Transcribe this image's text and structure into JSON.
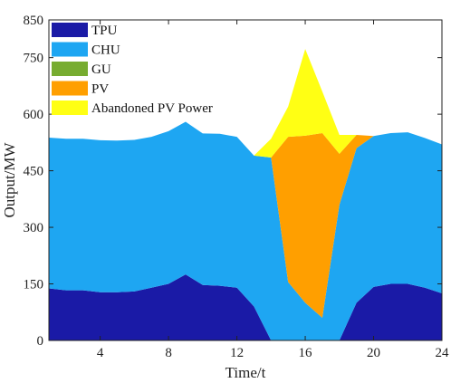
{
  "chart_data": {
    "type": "area",
    "stacked": true,
    "xlabel": "Time/t",
    "ylabel": "Output/MW",
    "xlim": [
      1,
      24
    ],
    "ylim": [
      0,
      850
    ],
    "xticks": [
      4,
      8,
      12,
      16,
      20,
      24
    ],
    "yticks": [
      0,
      150,
      300,
      450,
      600,
      750,
      850
    ],
    "legend_position": "top-left",
    "x": [
      1,
      2,
      3,
      4,
      5,
      6,
      7,
      8,
      9,
      10,
      11,
      12,
      13,
      14,
      15,
      16,
      17,
      18,
      19,
      20,
      21,
      22,
      23,
      24
    ],
    "series": [
      {
        "name": "TPU",
        "color": "#1a1aa6",
        "values": [
          138,
          133,
          133,
          128,
          128,
          130,
          140,
          150,
          175,
          147,
          145,
          140,
          90,
          0,
          0,
          0,
          0,
          0,
          100,
          142,
          150,
          150,
          140,
          125
        ]
      },
      {
        "name": "CHU",
        "color": "#1ea6f2",
        "values": [
          400,
          402,
          402,
          403,
          402,
          402,
          400,
          405,
          405,
          402,
          403,
          400,
          400,
          485,
          155,
          100,
          60,
          360,
          410,
          400,
          400,
          402,
          397,
          395
        ]
      },
      {
        "name": "GU",
        "color": "#77ac30",
        "values": [
          0,
          0,
          0,
          0,
          0,
          0,
          0,
          0,
          0,
          0,
          0,
          0,
          0,
          0,
          0,
          0,
          0,
          0,
          0,
          0,
          0,
          0,
          0,
          0
        ]
      },
      {
        "name": "PV",
        "color": "#ff9f00",
        "values": [
          0,
          0,
          0,
          0,
          0,
          0,
          0,
          0,
          0,
          0,
          0,
          0,
          0,
          0,
          385,
          443,
          490,
          135,
          35,
          0,
          0,
          0,
          0,
          0
        ]
      },
      {
        "name": "Abandoned PV Power",
        "color": "#ffff14",
        "values": [
          0,
          0,
          0,
          0,
          0,
          0,
          0,
          0,
          0,
          0,
          0,
          0,
          0,
          50,
          80,
          230,
          110,
          50,
          0,
          0,
          0,
          0,
          0,
          0
        ]
      }
    ]
  }
}
